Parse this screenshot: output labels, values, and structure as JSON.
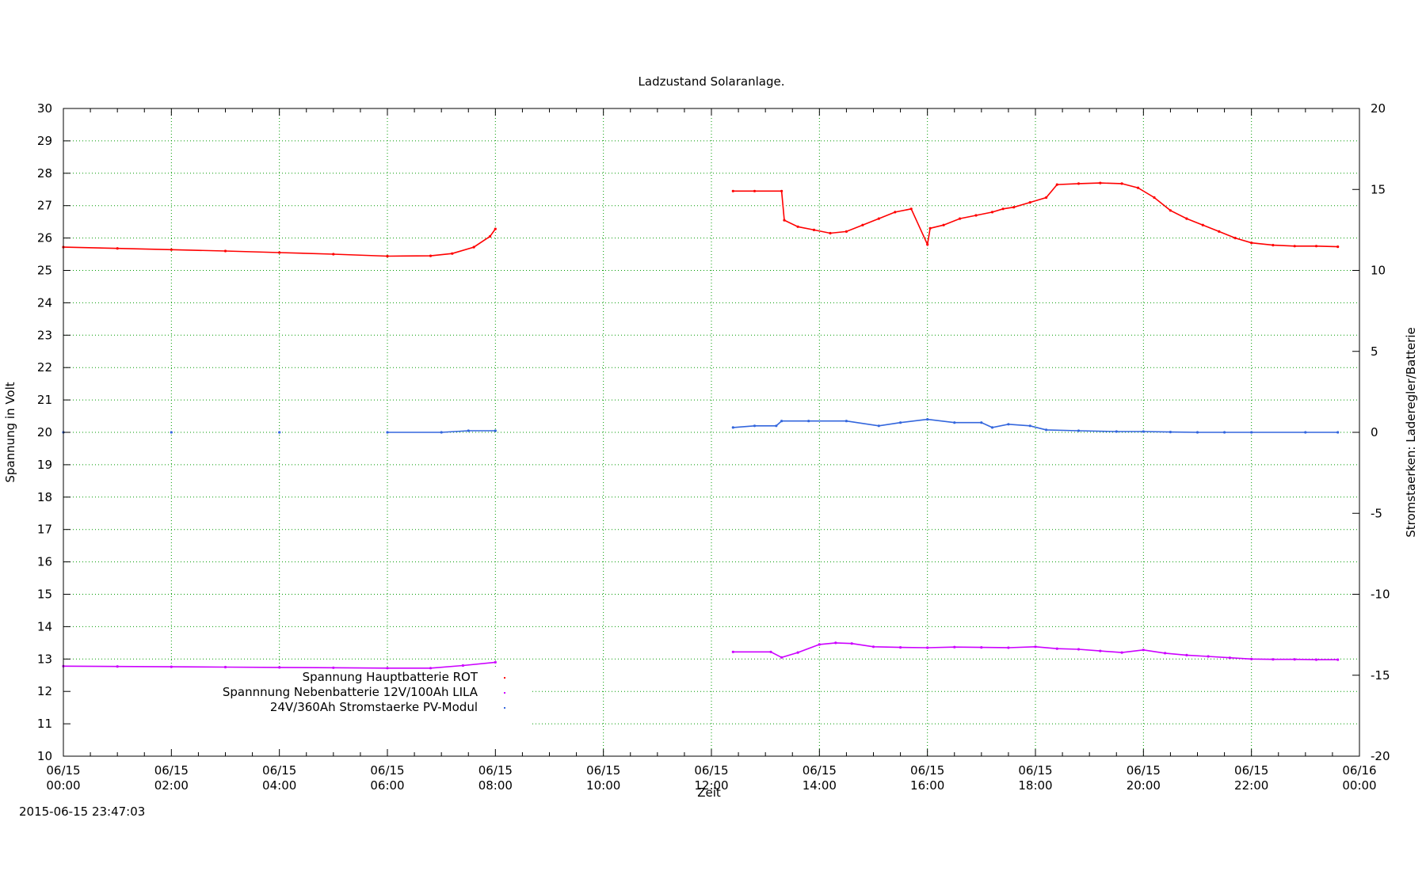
{
  "chart_data": {
    "type": "scatter",
    "title": "Ladzustand Solaranlage.",
    "xlabel": "Zeit",
    "ylabel": "Spannung in Volt",
    "y2label": "Stromstaerken: Laderegler/Batterie",
    "timestamp": "2015-06-15 23:47:03",
    "xlim": [
      0,
      24
    ],
    "ylim": [
      10,
      30
    ],
    "y2lim": [
      -20,
      20
    ],
    "grid": true,
    "legend_position": "bottom-left",
    "x_ticks": [
      {
        "value": 0,
        "date": "06/15",
        "time": "00:00"
      },
      {
        "value": 2,
        "date": "06/15",
        "time": "02:00"
      },
      {
        "value": 4,
        "date": "06/15",
        "time": "04:00"
      },
      {
        "value": 6,
        "date": "06/15",
        "time": "06:00"
      },
      {
        "value": 8,
        "date": "06/15",
        "time": "08:00"
      },
      {
        "value": 10,
        "date": "06/15",
        "time": "10:00"
      },
      {
        "value": 12,
        "date": "06/15",
        "time": "12:00"
      },
      {
        "value": 14,
        "date": "06/15",
        "time": "14:00"
      },
      {
        "value": 16,
        "date": "06/15",
        "time": "16:00"
      },
      {
        "value": 18,
        "date": "06/15",
        "time": "18:00"
      },
      {
        "value": 20,
        "date": "06/15",
        "time": "20:00"
      },
      {
        "value": 22,
        "date": "06/15",
        "time": "22:00"
      },
      {
        "value": 24,
        "date": "06/16",
        "time": "00:00"
      }
    ],
    "y_ticks": [
      10,
      11,
      12,
      13,
      14,
      15,
      16,
      17,
      18,
      19,
      20,
      21,
      22,
      23,
      24,
      25,
      26,
      27,
      28,
      29,
      30
    ],
    "y2_ticks": [
      -20,
      -15,
      -10,
      -5,
      0,
      5,
      10,
      15,
      20
    ],
    "series": [
      {
        "name": "Spannung Hauptbatterie ROT",
        "axis": "y",
        "color": "#ff0000",
        "x": [
          0.0,
          1.0,
          2.0,
          3.0,
          4.0,
          5.0,
          6.0,
          6.8,
          7.2,
          7.6,
          7.9,
          8.0,
          12.4,
          12.8,
          13.3,
          13.35,
          13.6,
          13.9,
          14.2,
          14.5,
          14.8,
          15.1,
          15.4,
          15.7,
          16.0,
          16.05,
          16.3,
          16.6,
          16.9,
          17.2,
          17.4,
          17.6,
          17.9,
          18.2,
          18.4,
          18.8,
          19.2,
          19.6,
          19.9,
          20.2,
          20.5,
          20.8,
          21.1,
          21.4,
          21.7,
          22.0,
          22.4,
          22.8,
          23.2,
          23.6
        ],
        "y": [
          25.72,
          25.68,
          25.64,
          25.6,
          25.55,
          25.5,
          25.44,
          25.45,
          25.52,
          25.72,
          26.05,
          26.28,
          27.45,
          27.45,
          27.45,
          26.55,
          26.35,
          26.25,
          26.15,
          26.2,
          26.4,
          26.6,
          26.8,
          26.9,
          25.8,
          26.3,
          26.4,
          26.6,
          26.7,
          26.8,
          26.9,
          26.95,
          27.1,
          27.25,
          27.65,
          27.68,
          27.7,
          27.68,
          27.55,
          27.25,
          26.85,
          26.6,
          26.4,
          26.2,
          26.0,
          25.85,
          25.78,
          25.75,
          25.75,
          25.73
        ]
      },
      {
        "name": "Spannnung Nebenbatterie 12V/100Ah LILA",
        "axis": "y",
        "color": "#cc00ff",
        "x": [
          0.0,
          1.0,
          2.0,
          3.0,
          4.0,
          5.0,
          6.0,
          6.8,
          7.4,
          8.0,
          12.4,
          13.1,
          13.3,
          13.6,
          14.0,
          14.3,
          14.6,
          15.0,
          15.5,
          16.0,
          16.5,
          17.0,
          17.5,
          18.0,
          18.4,
          18.8,
          19.2,
          19.6,
          20.0,
          20.4,
          20.8,
          21.2,
          21.6,
          22.0,
          22.4,
          22.8,
          23.2,
          23.6
        ],
        "y": [
          12.78,
          12.77,
          12.76,
          12.75,
          12.74,
          12.73,
          12.72,
          12.72,
          12.8,
          12.9,
          13.22,
          13.22,
          13.05,
          13.2,
          13.45,
          13.5,
          13.48,
          13.38,
          13.36,
          13.35,
          13.37,
          13.36,
          13.35,
          13.38,
          13.32,
          13.3,
          13.25,
          13.2,
          13.28,
          13.18,
          13.12,
          13.08,
          13.04,
          13.0,
          12.99,
          12.99,
          12.98,
          12.98
        ]
      },
      {
        "name": "24V/360Ah Stromstaerke PV-Modul",
        "axis": "y2",
        "color": "#3366dd",
        "x": [
          0.0,
          2.0,
          4.0,
          6.0,
          7.0,
          7.5,
          8.0,
          12.4,
          12.8,
          13.2,
          13.3,
          13.8,
          14.5,
          15.1,
          15.5,
          16.0,
          16.5,
          17.0,
          17.2,
          17.5,
          17.9,
          18.2,
          18.8,
          19.5,
          20.0,
          20.5,
          21.0,
          21.5,
          22.0,
          23.0,
          23.6
        ],
        "y": [
          0.0,
          0.0,
          0.0,
          0.0,
          0.0,
          0.1,
          0.1,
          0.3,
          0.4,
          0.4,
          0.7,
          0.7,
          0.7,
          0.4,
          0.6,
          0.8,
          0.6,
          0.6,
          0.3,
          0.5,
          0.4,
          0.15,
          0.1,
          0.05,
          0.05,
          0.02,
          0.0,
          0.0,
          0.0,
          0.0,
          0.0
        ]
      }
    ]
  }
}
